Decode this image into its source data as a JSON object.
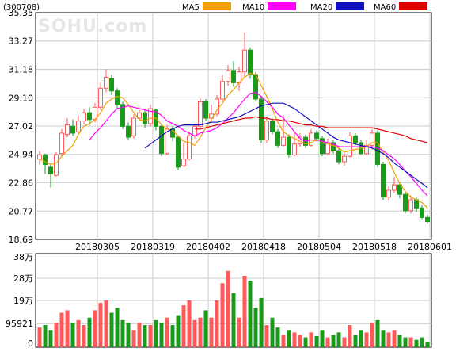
{
  "header": {
    "stock_code": "(300708)",
    "watermark": "SOHU.com",
    "legend": [
      {
        "label": "MA5",
        "color": "#f0a000"
      },
      {
        "label": "MA10",
        "color": "#ff00ff"
      },
      {
        "label": "MA20",
        "color": "#1010c0"
      },
      {
        "label": "MA60",
        "color": "#e00000"
      }
    ]
  },
  "colors": {
    "up": "#ff5a5a",
    "down": "#1a9a1a",
    "grid": "#c8c8c8",
    "axis": "#000000"
  },
  "chart_data": [
    {
      "type": "candlestick",
      "title": "",
      "ylim": [
        18.69,
        35.35
      ],
      "y_ticks": [
        "35.35",
        "33.27",
        "31.18",
        "29.10",
        "27.02",
        "24.94",
        "22.86",
        "20.77",
        "18.69"
      ],
      "x_tick_labels": [
        "20180305",
        "20180319",
        "20180402",
        "20180418",
        "20180504",
        "20180518",
        "20180601"
      ],
      "x_tick_index": [
        10,
        20,
        30,
        40,
        50,
        60,
        70
      ],
      "candles": [
        [
          24.6,
          24.9,
          25.2,
          24.2
        ],
        [
          24.9,
          24.2,
          25.0,
          23.5
        ],
        [
          24.0,
          23.5,
          24.3,
          22.5
        ],
        [
          23.4,
          24.9,
          25.1,
          23.3
        ],
        [
          25.0,
          26.5,
          26.8,
          24.8
        ],
        [
          26.4,
          27.1,
          27.6,
          26.2
        ],
        [
          27.0,
          26.5,
          27.5,
          26.3
        ],
        [
          26.6,
          27.4,
          27.8,
          26.5
        ],
        [
          27.4,
          28.0,
          28.3,
          27.2
        ],
        [
          28.0,
          27.5,
          28.4,
          27.1
        ],
        [
          27.5,
          28.4,
          28.7,
          27.3
        ],
        [
          28.4,
          29.8,
          30.2,
          28.2
        ],
        [
          29.8,
          30.6,
          31.2,
          29.5
        ],
        [
          30.5,
          29.6,
          30.8,
          29.3
        ],
        [
          29.6,
          28.6,
          29.8,
          28.3
        ],
        [
          28.6,
          27.0,
          28.8,
          26.8
        ],
        [
          27.0,
          26.2,
          27.3,
          26.0
        ],
        [
          26.3,
          27.6,
          27.9,
          26.1
        ],
        [
          27.6,
          28.0,
          28.4,
          27.4
        ],
        [
          28.0,
          27.2,
          28.2,
          26.9
        ],
        [
          27.2,
          28.3,
          28.6,
          27.0
        ],
        [
          28.2,
          27.0,
          28.3,
          26.7
        ],
        [
          27.0,
          25.0,
          27.2,
          24.8
        ],
        [
          25.0,
          26.8,
          27.1,
          24.9
        ],
        [
          26.8,
          26.2,
          27.0,
          25.9
        ],
        [
          26.2,
          24.0,
          26.3,
          23.8
        ],
        [
          24.1,
          24.6,
          25.8,
          24.0
        ],
        [
          24.6,
          26.3,
          26.6,
          24.5
        ],
        [
          26.3,
          27.0,
          27.2,
          26.1
        ],
        [
          27.0,
          28.8,
          29.1,
          26.9
        ],
        [
          28.8,
          27.6,
          29.0,
          27.4
        ],
        [
          27.6,
          27.9,
          28.6,
          27.3
        ],
        [
          27.9,
          29.0,
          29.3,
          27.7
        ],
        [
          29.0,
          30.3,
          30.8,
          28.8
        ],
        [
          30.3,
          31.1,
          31.5,
          30.0
        ],
        [
          31.1,
          30.2,
          31.8,
          29.9
        ],
        [
          30.2,
          31.0,
          31.4,
          29.6
        ],
        [
          31.0,
          32.6,
          33.9,
          30.6
        ],
        [
          32.6,
          30.8,
          32.8,
          30.5
        ],
        [
          30.8,
          29.0,
          31.0,
          28.8
        ],
        [
          29.0,
          26.0,
          29.2,
          25.8
        ],
        [
          26.0,
          27.4,
          27.7,
          25.8
        ],
        [
          27.4,
          26.6,
          27.6,
          26.4
        ],
        [
          26.6,
          25.6,
          26.8,
          25.4
        ],
        [
          25.6,
          26.2,
          27.8,
          25.5
        ],
        [
          26.2,
          24.9,
          26.4,
          24.7
        ],
        [
          24.9,
          25.7,
          26.5,
          24.8
        ],
        [
          25.7,
          26.2,
          26.5,
          25.5
        ],
        [
          26.2,
          25.6,
          26.4,
          25.4
        ],
        [
          25.6,
          26.5,
          26.8,
          25.5
        ],
        [
          26.5,
          26.1,
          26.7,
          25.9
        ],
        [
          26.1,
          25.0,
          26.3,
          24.8
        ],
        [
          25.0,
          25.8,
          26.1,
          24.9
        ],
        [
          25.8,
          25.2,
          26.0,
          25.0
        ],
        [
          25.2,
          24.4,
          25.4,
          24.2
        ],
        [
          24.4,
          24.8,
          25.0,
          24.1
        ],
        [
          24.8,
          26.3,
          26.6,
          24.7
        ],
        [
          26.3,
          25.8,
          26.5,
          25.6
        ],
        [
          25.8,
          25.0,
          26.0,
          24.9
        ],
        [
          25.0,
          25.6,
          26.0,
          24.9
        ],
        [
          25.6,
          26.5,
          26.8,
          25.3
        ],
        [
          26.5,
          24.2,
          26.7,
          24.0
        ],
        [
          24.2,
          21.8,
          24.4,
          21.6
        ],
        [
          21.8,
          22.3,
          22.6,
          21.6
        ],
        [
          22.3,
          22.7,
          23.3,
          22.1
        ],
        [
          22.7,
          22.0,
          22.9,
          21.7
        ],
        [
          22.0,
          20.8,
          22.2,
          20.6
        ],
        [
          20.8,
          21.6,
          21.9,
          20.6
        ],
        [
          21.6,
          21.0,
          21.8,
          20.7
        ],
        [
          21.0,
          20.3,
          21.2,
          20.2
        ],
        [
          20.3,
          20.0,
          20.5,
          19.9
        ]
      ],
      "ma5": [
        24.6,
        24.4,
        24.2,
        24.3,
        24.8,
        25.2,
        25.6,
        26.4,
        27.0,
        27.2,
        27.5,
        28.0,
        28.7,
        29.0,
        29.2,
        29.1,
        28.6,
        28.0,
        27.5,
        27.4,
        27.6,
        27.6,
        27.1,
        26.8,
        26.7,
        26.3,
        25.9,
        25.8,
        25.6,
        26.2,
        26.9,
        27.5,
        28.2,
        28.7,
        29.3,
        29.7,
        30.2,
        30.6,
        30.9,
        30.8,
        30.0,
        29.2,
        28.3,
        27.3,
        26.6,
        26.3,
        26.1,
        25.9,
        25.7,
        25.8,
        26.0,
        25.9,
        25.7,
        25.6,
        25.4,
        25.1,
        25.2,
        25.3,
        25.4,
        25.5,
        25.8,
        25.8,
        25.1,
        24.5,
        23.6,
        22.8,
        22.2,
        21.8,
        21.6,
        21.4,
        21.0
      ],
      "ma10": [
        null,
        null,
        null,
        null,
        null,
        null,
        null,
        null,
        null,
        26.0,
        26.5,
        26.9,
        27.4,
        27.9,
        28.3,
        28.4,
        28.5,
        28.4,
        28.3,
        28.2,
        28.1,
        28.1,
        27.8,
        27.4,
        27.2,
        27.0,
        26.7,
        26.5,
        26.3,
        26.5,
        26.6,
        26.7,
        26.9,
        27.2,
        27.6,
        28.0,
        28.5,
        29.0,
        29.4,
        29.5,
        29.2,
        28.8,
        28.4,
        27.9,
        27.6,
        27.1,
        26.6,
        26.1,
        25.9,
        26.0,
        26.0,
        25.9,
        25.8,
        25.7,
        25.5,
        25.5,
        25.5,
        25.5,
        25.5,
        25.5,
        25.5,
        25.4,
        25.2,
        24.9,
        24.6,
        24.2,
        23.7,
        23.3,
        22.8,
        22.3,
        21.9
      ],
      "ma20": [
        null,
        null,
        null,
        null,
        null,
        null,
        null,
        null,
        null,
        null,
        null,
        null,
        null,
        null,
        null,
        null,
        null,
        null,
        null,
        25.4,
        25.7,
        26.0,
        26.3,
        26.6,
        26.8,
        27.0,
        27.1,
        27.1,
        27.1,
        27.1,
        27.2,
        27.3,
        27.3,
        27.4,
        27.5,
        27.6,
        27.7,
        27.9,
        28.1,
        28.3,
        28.5,
        28.6,
        28.7,
        28.7,
        28.7,
        28.5,
        28.3,
        28.0,
        27.7,
        27.4,
        27.1,
        26.8,
        26.5,
        26.2,
        26.0,
        25.9,
        25.8,
        25.7,
        25.6,
        25.5,
        25.4,
        25.2,
        25.0,
        24.7,
        24.3,
        24.0,
        23.7,
        23.4,
        23.1,
        22.8,
        22.5
      ],
      "ma60": [
        null,
        null,
        null,
        null,
        null,
        null,
        null,
        null,
        null,
        null,
        null,
        null,
        null,
        null,
        null,
        null,
        null,
        null,
        null,
        null,
        null,
        null,
        null,
        null,
        null,
        null,
        null,
        null,
        26.8,
        26.8,
        26.9,
        27.0,
        27.1,
        27.2,
        27.3,
        27.4,
        27.5,
        27.6,
        27.6,
        27.7,
        27.6,
        27.6,
        27.5,
        27.5,
        27.4,
        27.4,
        27.3,
        27.2,
        27.1,
        27.1,
        27.0,
        27.0,
        26.9,
        26.9,
        26.9,
        26.9,
        26.9,
        26.9,
        26.9,
        26.9,
        26.9,
        26.8,
        26.7,
        26.6,
        26.5,
        26.4,
        26.3,
        26.1,
        26.0,
        25.9,
        25.8
      ]
    },
    {
      "type": "bar",
      "title": "",
      "unit": "万",
      "ylim": [
        0,
        380000
      ],
      "y_ticks": [
        "38万",
        "28万",
        "19万",
        "95921",
        "0"
      ],
      "y_tick_values": [
        380000,
        280000,
        190000,
        95921,
        0
      ],
      "volumes": [
        80000,
        90000,
        70000,
        100000,
        140000,
        150000,
        100000,
        110000,
        90000,
        120000,
        150000,
        180000,
        190000,
        140000,
        160000,
        110000,
        100000,
        70000,
        100000,
        90000,
        90000,
        110000,
        100000,
        120000,
        90000,
        130000,
        170000,
        190000,
        110000,
        120000,
        150000,
        120000,
        190000,
        260000,
        310000,
        220000,
        120000,
        290000,
        270000,
        160000,
        200000,
        90000,
        120000,
        80000,
        50000,
        70000,
        60000,
        50000,
        40000,
        60000,
        45000,
        70000,
        40000,
        50000,
        60000,
        40000,
        90000,
        50000,
        70000,
        60000,
        100000,
        110000,
        70000,
        60000,
        70000,
        50000,
        40000,
        40000,
        30000,
        40000,
        20000
      ],
      "up_flags": [
        1,
        0,
        0,
        1,
        1,
        1,
        0,
        1,
        1,
        0,
        1,
        1,
        1,
        0,
        0,
        0,
        0,
        1,
        1,
        0,
        1,
        0,
        0,
        1,
        0,
        0,
        1,
        1,
        1,
        1,
        0,
        1,
        1,
        1,
        1,
        0,
        1,
        1,
        0,
        0,
        0,
        1,
        0,
        0,
        1,
        0,
        1,
        1,
        0,
        1,
        0,
        0,
        1,
        0,
        0,
        1,
        1,
        0,
        0,
        1,
        1,
        0,
        0,
        1,
        1,
        0,
        0,
        1,
        0,
        0,
        0
      ]
    }
  ]
}
